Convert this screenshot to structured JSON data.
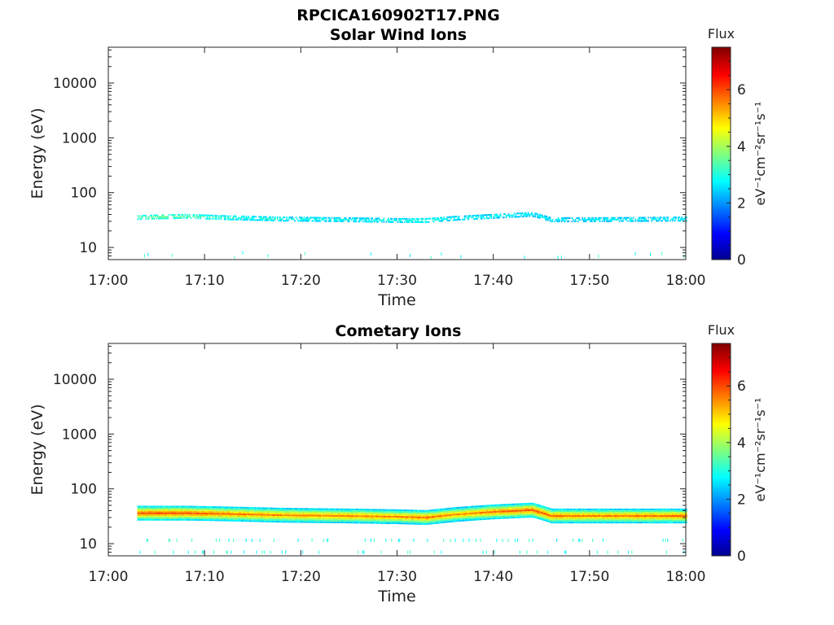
{
  "figure": {
    "title": "RPCICA160902T17.PNG"
  },
  "chart_data": [
    {
      "type": "heatmap",
      "title": "Solar Wind Ions",
      "xlabel": "Time",
      "ylabel": "Energy (eV)",
      "y_scale": "log",
      "x_range": [
        "17:00",
        "18:00"
      ],
      "x_ticks": [
        "17:00",
        "17:10",
        "17:20",
        "17:30",
        "17:40",
        "17:50",
        "18:00"
      ],
      "y_ticks": [
        "10",
        "100",
        "1000",
        "10000"
      ],
      "ylim": [
        6,
        45000
      ],
      "data_start": "17:03",
      "bands": [
        {
          "time": [
            "17:03",
            "17:05",
            "17:08",
            "17:12",
            "17:18",
            "17:25",
            "17:30",
            "17:33",
            "17:36",
            "17:40",
            "17:44",
            "17:46",
            "17:50",
            "18:00"
          ],
          "energy": [
            35,
            36,
            37,
            35,
            33,
            32,
            31,
            31,
            34,
            37,
            40,
            32,
            32,
            33
          ],
          "flux": [
            3.5,
            3.6,
            3.5,
            3.2,
            3.0,
            2.9,
            3.0,
            3.2,
            2.9,
            2.9,
            2.8,
            2.8,
            2.8,
            2.8
          ]
        }
      ],
      "colorbar": {
        "label": "Flux",
        "units": "eV⁻¹cm⁻²sr⁻¹s⁻¹",
        "range": [
          0,
          7.5
        ],
        "ticks": [
          "0",
          "2",
          "4",
          "6"
        ],
        "colormap": "jet"
      },
      "grid": false
    },
    {
      "type": "heatmap",
      "title": "Cometary Ions",
      "xlabel": "Time",
      "ylabel": "Energy (eV)",
      "y_scale": "log",
      "x_range": [
        "17:00",
        "18:00"
      ],
      "x_ticks": [
        "17:00",
        "17:10",
        "17:20",
        "17:30",
        "17:40",
        "17:50",
        "18:00"
      ],
      "y_ticks": [
        "10",
        "100",
        "1000",
        "10000"
      ],
      "ylim": [
        6,
        45000
      ],
      "data_start": "17:03",
      "bands": [
        {
          "time": [
            "17:03",
            "17:08",
            "17:12",
            "17:18",
            "17:25",
            "17:30",
            "17:33",
            "17:36",
            "17:40",
            "17:44",
            "17:46",
            "17:50",
            "18:00"
          ],
          "energy": [
            36,
            36,
            35,
            33,
            32,
            31,
            30,
            34,
            38,
            41,
            32,
            32,
            32
          ],
          "flux": [
            6.0,
            6.0,
            5.8,
            5.6,
            5.6,
            5.6,
            5.8,
            5.5,
            5.8,
            6.0,
            5.8,
            5.6,
            5.8
          ]
        }
      ],
      "colorbar": {
        "label": "Flux",
        "units": "eV⁻¹cm⁻²sr⁻¹s⁻¹",
        "range": [
          0,
          7.5
        ],
        "ticks": [
          "0",
          "2",
          "4",
          "6"
        ],
        "colormap": "jet"
      },
      "grid": false
    }
  ]
}
